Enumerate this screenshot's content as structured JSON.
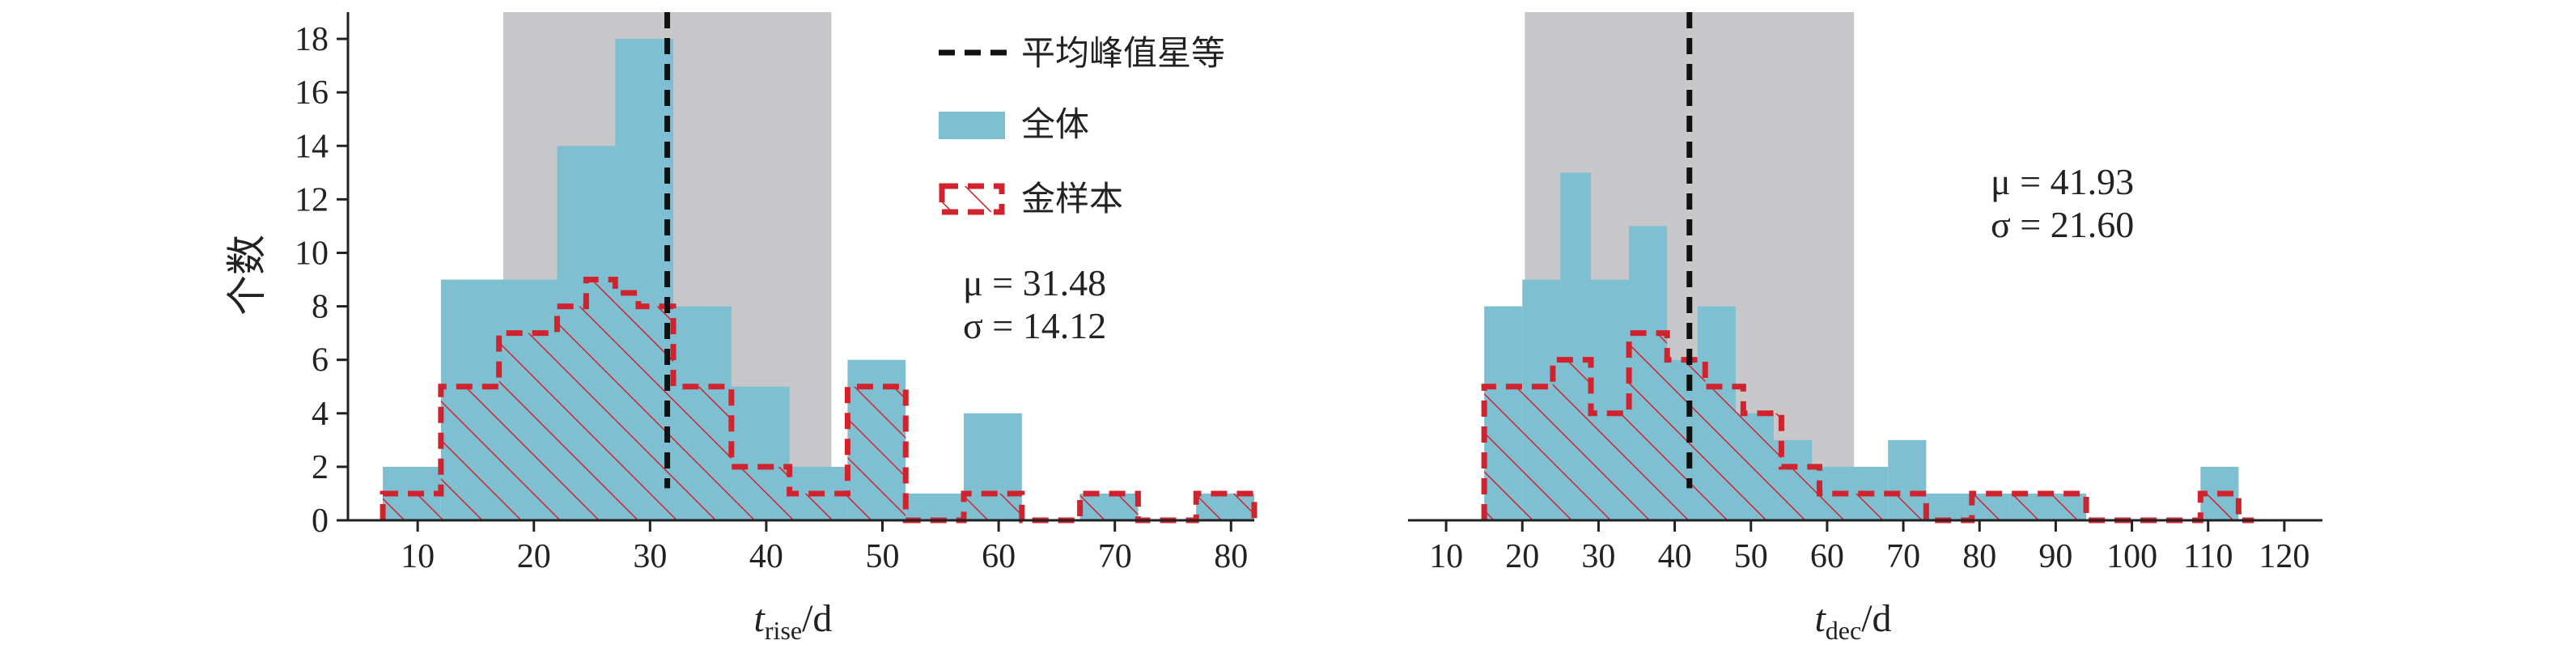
{
  "chart_data": [
    {
      "type": "histogram",
      "ylabel": "个数",
      "xlabel_main": "t",
      "xlabel_sub": "rise",
      "xlabel_unit": "/d",
      "xlim": [
        4,
        82
      ],
      "ylim": [
        0,
        19
      ],
      "xticks": [
        "10",
        "20",
        "30",
        "40",
        "50",
        "60",
        "70",
        "80"
      ],
      "yticks": [
        "0",
        "2",
        "4",
        "6",
        "8",
        "10",
        "12",
        "14",
        "16",
        "18"
      ],
      "std_band": [
        17.36,
        45.6
      ],
      "mean_line": 31.48,
      "stats": {
        "mu": "μ = 31.48",
        "sigma": "σ = 14.12"
      },
      "legend": {
        "mean": "平均峰值星等",
        "all": "全体",
        "gold": "金样本"
      },
      "colors": {
        "all": "#7fbfd2",
        "gold": "#d0232e",
        "band": "#c8c8ca",
        "mean": "#111111"
      },
      "all_sample": [
        {
          "x0": 7,
          "x1": 12,
          "count": 2
        },
        {
          "x0": 12,
          "x1": 22,
          "count": 9
        },
        {
          "x0": 22,
          "x1": 27,
          "count": 14
        },
        {
          "x0": 27,
          "x1": 32,
          "count": 18
        },
        {
          "x0": 32,
          "x1": 37,
          "count": 8
        },
        {
          "x0": 37,
          "x1": 42,
          "count": 5
        },
        {
          "x0": 42,
          "x1": 47,
          "count": 2
        },
        {
          "x0": 47,
          "x1": 52,
          "count": 6
        },
        {
          "x0": 52,
          "x1": 57,
          "count": 1
        },
        {
          "x0": 57,
          "x1": 62,
          "count": 4
        },
        {
          "x0": 62,
          "x1": 67,
          "count": 0
        },
        {
          "x0": 67,
          "x1": 72,
          "count": 1
        },
        {
          "x0": 72,
          "x1": 77,
          "count": 0
        },
        {
          "x0": 77,
          "x1": 82,
          "count": 1
        }
      ],
      "gold_sample": [
        {
          "x0": 7,
          "x1": 12,
          "count": 1
        },
        {
          "x0": 12,
          "x1": 17,
          "count": 5
        },
        {
          "x0": 17,
          "x1": 22,
          "count": 7
        },
        {
          "x0": 22,
          "x1": 24.5,
          "count": 8
        },
        {
          "x0": 24.5,
          "x1": 27,
          "count": 9
        },
        {
          "x0": 27,
          "x1": 29,
          "count": 8.5
        },
        {
          "x0": 29,
          "x1": 32,
          "count": 8
        },
        {
          "x0": 32,
          "x1": 37,
          "count": 5
        },
        {
          "x0": 37,
          "x1": 42,
          "count": 2
        },
        {
          "x0": 42,
          "x1": 47,
          "count": 1
        },
        {
          "x0": 47,
          "x1": 52,
          "count": 5
        },
        {
          "x0": 52,
          "x1": 57,
          "count": 0
        },
        {
          "x0": 57,
          "x1": 62,
          "count": 1
        },
        {
          "x0": 62,
          "x1": 67,
          "count": 0
        },
        {
          "x0": 67,
          "x1": 72,
          "count": 1
        },
        {
          "x0": 72,
          "x1": 77,
          "count": 0
        },
        {
          "x0": 77,
          "x1": 82,
          "count": 1
        }
      ]
    },
    {
      "type": "histogram",
      "xlabel_main": "t",
      "xlabel_sub": "dec",
      "xlabel_unit": "/d",
      "xlim": [
        5,
        125
      ],
      "ylim": [
        0,
        19
      ],
      "xticks": [
        "10",
        "20",
        "30",
        "40",
        "50",
        "60",
        "70",
        "80",
        "90",
        "100",
        "110",
        "120"
      ],
      "std_band": [
        20.33,
        63.53
      ],
      "mean_line": 41.93,
      "stats": {
        "mu": "μ = 41.93",
        "sigma": "σ = 21.60"
      },
      "colors": {
        "all": "#7fbfd2",
        "gold": "#d0232e",
        "band": "#c8c8ca",
        "mean": "#111111"
      },
      "all_sample": [
        {
          "x0": 15,
          "x1": 20,
          "count": 8
        },
        {
          "x0": 20,
          "x1": 25,
          "count": 9
        },
        {
          "x0": 25,
          "x1": 29,
          "count": 13
        },
        {
          "x0": 29,
          "x1": 34,
          "count": 9
        },
        {
          "x0": 34,
          "x1": 39,
          "count": 11
        },
        {
          "x0": 39,
          "x1": 43,
          "count": 6
        },
        {
          "x0": 43,
          "x1": 48,
          "count": 8
        },
        {
          "x0": 48,
          "x1": 53,
          "count": 4
        },
        {
          "x0": 53,
          "x1": 58,
          "count": 3
        },
        {
          "x0": 58,
          "x1": 63,
          "count": 2
        },
        {
          "x0": 63,
          "x1": 68,
          "count": 2
        },
        {
          "x0": 68,
          "x1": 73,
          "count": 3
        },
        {
          "x0": 73,
          "x1": 78,
          "count": 1
        },
        {
          "x0": 78,
          "x1": 84,
          "count": 1
        },
        {
          "x0": 84,
          "x1": 89,
          "count": 1
        },
        {
          "x0": 89,
          "x1": 94,
          "count": 1
        },
        {
          "x0": 94,
          "x1": 109,
          "count": 0
        },
        {
          "x0": 109,
          "x1": 114,
          "count": 2
        },
        {
          "x0": 114,
          "x1": 116,
          "count": 0
        }
      ],
      "gold_sample": [
        {
          "x0": 15,
          "x1": 24,
          "count": 5
        },
        {
          "x0": 24,
          "x1": 29,
          "count": 6
        },
        {
          "x0": 29,
          "x1": 34,
          "count": 4
        },
        {
          "x0": 34,
          "x1": 39,
          "count": 7
        },
        {
          "x0": 39,
          "x1": 44,
          "count": 6
        },
        {
          "x0": 44,
          "x1": 49,
          "count": 5
        },
        {
          "x0": 49,
          "x1": 54,
          "count": 4
        },
        {
          "x0": 54,
          "x1": 59,
          "count": 2
        },
        {
          "x0": 59,
          "x1": 73,
          "count": 1
        },
        {
          "x0": 73,
          "x1": 79,
          "count": 0
        },
        {
          "x0": 79,
          "x1": 94,
          "count": 1
        },
        {
          "x0": 94,
          "x1": 109,
          "count": 0
        },
        {
          "x0": 109,
          "x1": 114,
          "count": 1
        },
        {
          "x0": 114,
          "x1": 116,
          "count": 0
        }
      ]
    }
  ]
}
